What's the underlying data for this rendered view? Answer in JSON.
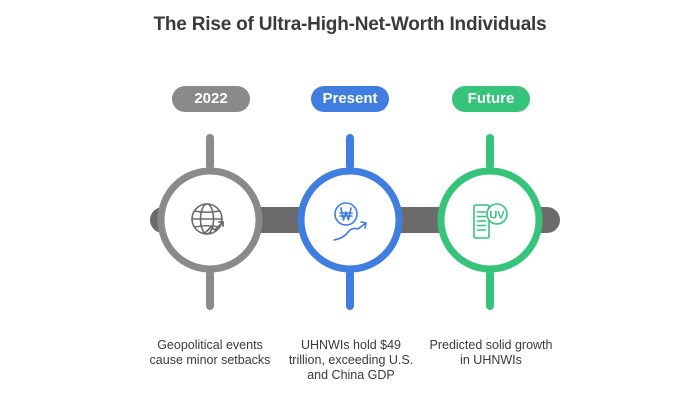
{
  "title": "The Rise of Ultra-High-Net-Worth Individuals",
  "colors": {
    "gray": "#8a8a8a",
    "dark_gray": "#6b6b6b",
    "blue": "#3f7de0",
    "green": "#35c47a",
    "text": "#3a3a3a"
  },
  "stages": [
    {
      "label": "2022",
      "icon": "globe-trend-icon",
      "description": "Geopolitical events cause minor setbacks"
    },
    {
      "label": "Present",
      "icon": "won-coin-growth-icon",
      "description": "UHNWIs hold $49 trillion, exceeding U.S. and China GDP"
    },
    {
      "label": "Future",
      "icon": "uv-document-icon",
      "description": "Predicted solid growth in UHNWIs"
    }
  ],
  "icon_text": {
    "uv_badge": "UV"
  }
}
